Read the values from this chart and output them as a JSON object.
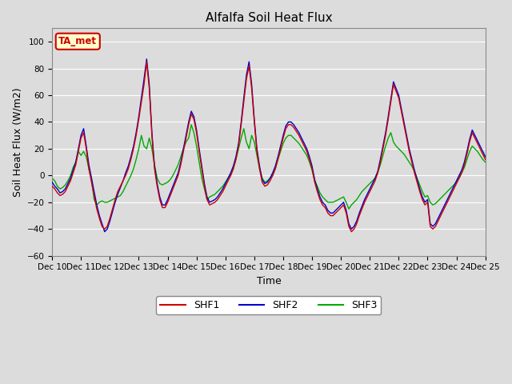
{
  "title": "Alfalfa Soil Heat Flux",
  "xlabel": "Time",
  "ylabel": "Soil Heat Flux (W/m2)",
  "ylim": [
    -60,
    110
  ],
  "yticks": [
    -60,
    -40,
    -20,
    0,
    20,
    40,
    60,
    80,
    100
  ],
  "background_color": "#dcdcdc",
  "plot_bg_color": "#dcdcdc",
  "colors": {
    "SHF1": "#cc0000",
    "SHF2": "#0000cc",
    "SHF3": "#00aa00"
  },
  "annotation_text": "TA_met",
  "annotation_bg": "#ffffcc",
  "annotation_border": "#cc0000",
  "x_labels": [
    "Dec 10",
    "Dec 11",
    "Dec 12",
    "Dec 13",
    "Dec 14",
    "Dec 15",
    "Dec 16",
    "Dec 17",
    "Dec 18",
    "Dec 19",
    "Dec 20",
    "Dec 21",
    "Dec 22",
    "Dec 23",
    "Dec 24",
    "Dec 25"
  ],
  "SHF1": [
    -8,
    -10,
    -13,
    -15,
    -14,
    -12,
    -8,
    -4,
    2,
    8,
    18,
    28,
    32,
    20,
    5,
    -5,
    -15,
    -25,
    -32,
    -38,
    -40,
    -38,
    -32,
    -25,
    -18,
    -12,
    -8,
    -4,
    0,
    5,
    12,
    20,
    30,
    42,
    55,
    68,
    85,
    65,
    30,
    5,
    -8,
    -18,
    -24,
    -24,
    -20,
    -15,
    -10,
    -5,
    0,
    8,
    18,
    28,
    38,
    46,
    42,
    32,
    18,
    5,
    -8,
    -18,
    -22,
    -21,
    -20,
    -18,
    -15,
    -12,
    -8,
    -4,
    0,
    5,
    12,
    22,
    38,
    55,
    72,
    82,
    65,
    40,
    18,
    5,
    -5,
    -8,
    -7,
    -4,
    0,
    5,
    12,
    20,
    28,
    35,
    38,
    38,
    36,
    33,
    30,
    26,
    22,
    18,
    12,
    5,
    -5,
    -12,
    -18,
    -22,
    -24,
    -28,
    -30,
    -30,
    -28,
    -26,
    -24,
    -22,
    -28,
    -38,
    -42,
    -40,
    -36,
    -30,
    -25,
    -20,
    -16,
    -12,
    -8,
    -4,
    2,
    10,
    20,
    30,
    42,
    55,
    68,
    63,
    58,
    48,
    38,
    28,
    18,
    10,
    2,
    -5,
    -12,
    -18,
    -22,
    -20,
    -38,
    -40,
    -38,
    -34,
    -30,
    -26,
    -22,
    -18,
    -14,
    -10,
    -6,
    -2,
    2,
    8,
    16,
    25,
    32,
    28,
    24,
    20,
    16,
    12
  ],
  "SHF2": [
    -5,
    -8,
    -10,
    -13,
    -12,
    -10,
    -6,
    -2,
    4,
    10,
    20,
    30,
    35,
    22,
    8,
    -2,
    -12,
    -22,
    -30,
    -36,
    -42,
    -40,
    -34,
    -27,
    -20,
    -14,
    -9,
    -4,
    2,
    7,
    14,
    22,
    32,
    44,
    58,
    72,
    87,
    68,
    32,
    7,
    -6,
    -16,
    -22,
    -22,
    -18,
    -13,
    -8,
    -3,
    2,
    10,
    20,
    30,
    40,
    48,
    44,
    34,
    20,
    7,
    -6,
    -16,
    -20,
    -19,
    -18,
    -16,
    -13,
    -10,
    -6,
    -2,
    2,
    7,
    14,
    24,
    40,
    58,
    75,
    85,
    68,
    42,
    20,
    7,
    -3,
    -6,
    -5,
    -2,
    2,
    7,
    14,
    22,
    30,
    37,
    40,
    40,
    38,
    35,
    32,
    28,
    24,
    20,
    14,
    7,
    -3,
    -10,
    -16,
    -20,
    -22,
    -26,
    -28,
    -28,
    -26,
    -24,
    -22,
    -20,
    -26,
    -36,
    -40,
    -38,
    -34,
    -28,
    -23,
    -18,
    -14,
    -10,
    -6,
    -2,
    3,
    12,
    22,
    32,
    44,
    57,
    70,
    65,
    60,
    50,
    40,
    30,
    20,
    12,
    4,
    -3,
    -10,
    -16,
    -20,
    -18,
    -36,
    -38,
    -36,
    -32,
    -28,
    -24,
    -20,
    -16,
    -12,
    -8,
    -4,
    0,
    4,
    10,
    18,
    27,
    34,
    30,
    26,
    22,
    18,
    14
  ],
  "SHF3": [
    -2,
    -4,
    -8,
    -10,
    -9,
    -7,
    -4,
    0,
    6,
    10,
    18,
    15,
    18,
    14,
    5,
    -3,
    -18,
    -22,
    -20,
    -19,
    -20,
    -20,
    -19,
    -18,
    -17,
    -16,
    -15,
    -12,
    -8,
    -4,
    0,
    5,
    12,
    20,
    30,
    22,
    20,
    28,
    20,
    8,
    -2,
    -6,
    -7,
    -6,
    -5,
    -3,
    0,
    4,
    8,
    14,
    20,
    25,
    28,
    38,
    32,
    22,
    10,
    -2,
    -10,
    -18,
    -16,
    -15,
    -14,
    -12,
    -10,
    -8,
    -5,
    -2,
    0,
    5,
    12,
    20,
    28,
    35,
    25,
    20,
    30,
    25,
    15,
    5,
    -2,
    -5,
    -4,
    -2,
    0,
    5,
    12,
    18,
    24,
    28,
    30,
    30,
    28,
    26,
    24,
    21,
    18,
    15,
    10,
    4,
    -4,
    -8,
    -13,
    -16,
    -18,
    -20,
    -20,
    -20,
    -19,
    -18,
    -17,
    -16,
    -20,
    -25,
    -22,
    -20,
    -18,
    -15,
    -12,
    -10,
    -8,
    -6,
    -4,
    -2,
    2,
    8,
    15,
    22,
    28,
    32,
    25,
    22,
    20,
    18,
    16,
    13,
    10,
    7,
    3,
    -2,
    -7,
    -12,
    -16,
    -15,
    -20,
    -22,
    -21,
    -19,
    -17,
    -15,
    -13,
    -11,
    -9,
    -7,
    -5,
    -2,
    2,
    6,
    12,
    18,
    22,
    20,
    18,
    15,
    12,
    10
  ]
}
